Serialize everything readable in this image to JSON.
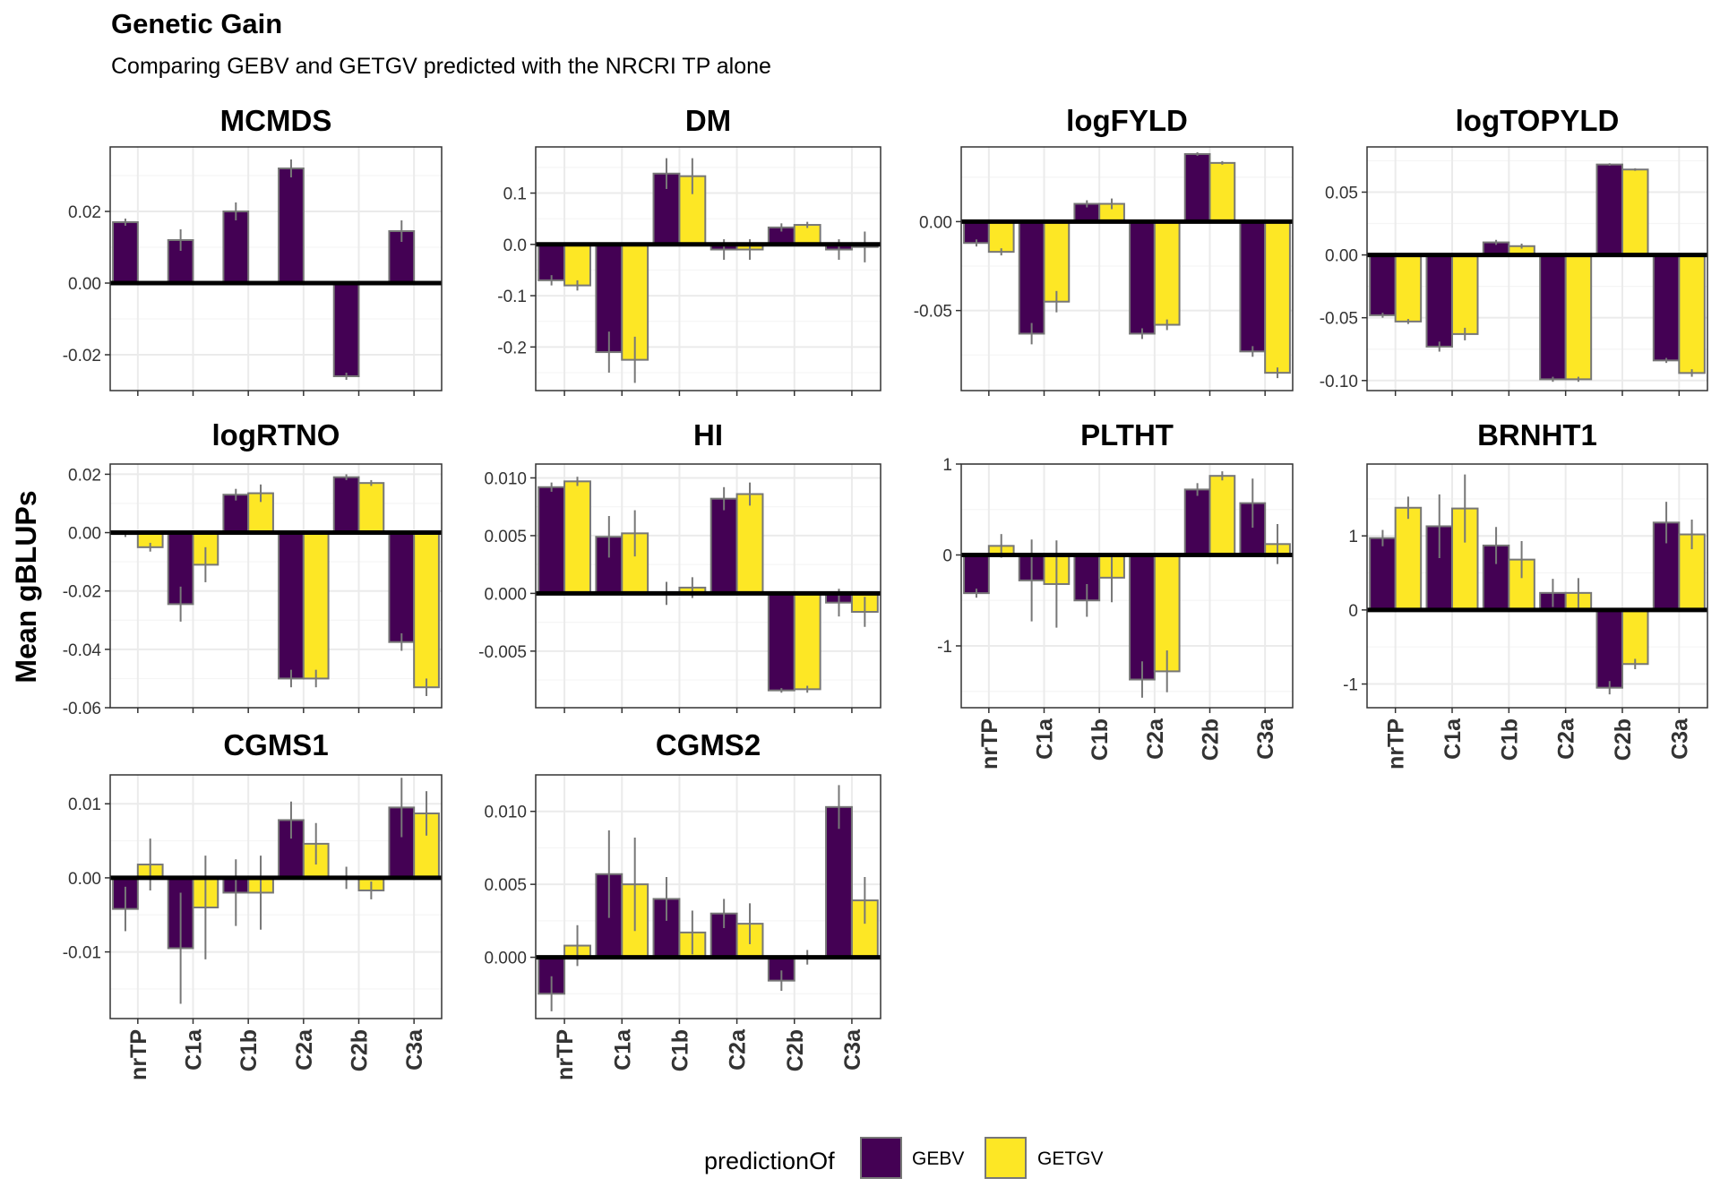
{
  "title": "Genetic Gain",
  "subtitle": "Comparing GEBV and GETGV  predicted with the NRCRI TP alone",
  "ylabel": "Mean gBLUPs",
  "legend": {
    "title": "predictionOf",
    "entries": [
      "GEBV",
      "GETGV"
    ]
  },
  "colors": {
    "GEBV": "#440154",
    "GETGV": "#FDE725",
    "bar_outline": "#777777",
    "error_bar": "#777777",
    "zero_line": "#000000",
    "grid_major": "#EBEBEB",
    "grid_minor": "#F5F5F5",
    "panel_border": "#333333"
  },
  "chart_data": {
    "type": "bar",
    "layout": "facet_wrap",
    "ncol": 4,
    "categories": [
      "nrTP",
      "C1a",
      "C1b",
      "C2a",
      "C2b",
      "C3a"
    ],
    "series_names": [
      "GEBV",
      "GETGV"
    ],
    "grid": true,
    "legend_position": "bottom",
    "panels": [
      {
        "name": "MCMDS",
        "ylim": [
          -0.03,
          0.038
        ],
        "yticks": [
          -0.02,
          0.0,
          0.02
        ],
        "ytick_labels": [
          "-0.02",
          "0.00",
          "0.02"
        ],
        "GEBV": [
          0.017,
          0.012,
          0.02,
          0.032,
          -0.026,
          0.0145
        ],
        "GEBV_err": [
          0.001,
          0.003,
          0.0025,
          0.0025,
          0.001,
          0.003
        ],
        "GETGV": [
          null,
          null,
          null,
          null,
          null,
          null
        ],
        "GETGV_err": [
          null,
          null,
          null,
          null,
          null,
          null
        ]
      },
      {
        "name": "DM",
        "ylim": [
          -0.285,
          0.19
        ],
        "yticks": [
          -0.2,
          -0.1,
          0.0,
          0.1
        ],
        "ytick_labels": [
          "-0.2",
          "-0.1",
          "0.0",
          "0.1"
        ],
        "GEBV": [
          -0.07,
          -0.21,
          0.138,
          -0.01,
          0.033,
          -0.01
        ],
        "GEBV_err": [
          0.01,
          0.04,
          0.03,
          0.02,
          0.008,
          0.02
        ],
        "GETGV": [
          -0.08,
          -0.225,
          0.133,
          -0.01,
          0.038,
          -0.005
        ],
        "GETGV_err": [
          0.01,
          0.045,
          0.035,
          0.02,
          0.006,
          0.03
        ]
      },
      {
        "name": "logFYLD",
        "ylim": [
          -0.095,
          0.042
        ],
        "yticks": [
          -0.05,
          0.0
        ],
        "ytick_labels": [
          "-0.05",
          "0.00"
        ],
        "GEBV": [
          -0.012,
          -0.063,
          0.01,
          -0.063,
          0.038,
          -0.073
        ],
        "GEBV_err": [
          0.002,
          0.006,
          0.002,
          0.003,
          0.001,
          0.003
        ],
        "GETGV": [
          -0.017,
          -0.045,
          0.01,
          -0.058,
          0.033,
          -0.085
        ],
        "GETGV_err": [
          0.002,
          0.006,
          0.003,
          0.003,
          0.001,
          0.003
        ]
      },
      {
        "name": "logTOPYLD",
        "ylim": [
          -0.108,
          0.086
        ],
        "yticks": [
          -0.1,
          -0.05,
          0.0,
          0.05
        ],
        "ytick_labels": [
          "-0.10",
          "-0.05",
          "0.00",
          "0.05"
        ],
        "GEBV": [
          -0.048,
          -0.073,
          0.01,
          -0.099,
          0.072,
          -0.084
        ],
        "GEBV_err": [
          0.002,
          0.004,
          0.002,
          0.002,
          0.001,
          0.002
        ],
        "GETGV": [
          -0.053,
          -0.063,
          0.007,
          -0.099,
          0.068,
          -0.094
        ],
        "GETGV_err": [
          0.002,
          0.005,
          0.002,
          0.002,
          0.001,
          0.003
        ]
      },
      {
        "name": "logRTNO",
        "ylim": [
          -0.06,
          0.0235
        ],
        "yticks": [
          -0.06,
          -0.04,
          -0.02,
          0.0,
          0.02
        ],
        "ytick_labels": [
          "-0.06",
          "-0.04",
          "-0.02",
          "0.00",
          "0.02"
        ],
        "GEBV": [
          -0.0005,
          -0.0245,
          0.013,
          -0.05,
          0.019,
          -0.0375
        ],
        "GEBV_err": [
          0.001,
          0.006,
          0.002,
          0.003,
          0.001,
          0.003
        ],
        "GETGV": [
          -0.005,
          -0.011,
          0.0135,
          -0.05,
          0.017,
          -0.053
        ],
        "GETGV_err": [
          0.0015,
          0.006,
          0.003,
          0.003,
          0.001,
          0.003
        ]
      },
      {
        "name": "HI",
        "ylim": [
          -0.0099,
          0.0112
        ],
        "yticks": [
          -0.005,
          0.0,
          0.005,
          0.01
        ],
        "ytick_labels": [
          "-0.005",
          "0.000",
          "0.005",
          "0.010"
        ],
        "GEBV": [
          0.0092,
          0.0049,
          0.0,
          0.0082,
          -0.0084,
          -0.0008
        ],
        "GEBV_err": [
          0.0004,
          0.0018,
          0.001,
          0.001,
          0.0002,
          0.0012
        ],
        "GETGV": [
          0.0097,
          0.0052,
          0.0005,
          0.0086,
          -0.0083,
          -0.0016
        ],
        "GETGV_err": [
          0.0004,
          0.002,
          0.0009,
          0.001,
          0.0003,
          0.0013
        ]
      },
      {
        "name": "PLTHT",
        "ylim": [
          -1.68,
          1.0
        ],
        "yticks": [
          -1,
          0,
          1
        ],
        "ytick_labels": [
          "-1",
          "0",
          "1"
        ],
        "GEBV": [
          -0.42,
          -0.28,
          -0.5,
          -1.37,
          0.72,
          0.57
        ],
        "GEBV_err": [
          0.05,
          0.45,
          0.18,
          0.2,
          0.07,
          0.27
        ],
        "GETGV": [
          0.1,
          -0.32,
          -0.25,
          -1.28,
          0.87,
          0.12
        ],
        "GETGV_err": [
          0.13,
          0.48,
          0.27,
          0.23,
          0.05,
          0.22
        ]
      },
      {
        "name": "BRNHT1",
        "ylim": [
          -1.32,
          1.97
        ],
        "yticks": [
          -1,
          0,
          1
        ],
        "ytick_labels": [
          "-1",
          "0",
          "1"
        ],
        "GEBV": [
          0.97,
          1.13,
          0.87,
          0.23,
          -1.05,
          1.18
        ],
        "GEBV_err": [
          0.11,
          0.43,
          0.25,
          0.19,
          0.09,
          0.28
        ],
        "GETGV": [
          1.38,
          1.37,
          0.68,
          0.23,
          -0.73,
          1.02
        ],
        "GETGV_err": [
          0.15,
          0.46,
          0.25,
          0.2,
          0.07,
          0.2
        ]
      },
      {
        "name": "CGMS1",
        "ylim": [
          -0.019,
          0.0139
        ],
        "yticks": [
          -0.01,
          0.0,
          0.01
        ],
        "ytick_labels": [
          "-0.01",
          "0.00",
          "0.01"
        ],
        "GEBV": [
          -0.0042,
          -0.0095,
          -0.002,
          0.0078,
          0.0,
          0.0095
        ],
        "GEBV_err": [
          0.003,
          0.0075,
          0.0045,
          0.0025,
          0.0015,
          0.004
        ],
        "GETGV": [
          0.0018,
          -0.004,
          -0.002,
          0.0046,
          -0.0017,
          0.0087
        ],
        "GETGV_err": [
          0.0035,
          0.007,
          0.005,
          0.0028,
          0.0012,
          0.003
        ]
      },
      {
        "name": "CGMS2",
        "ylim": [
          -0.0042,
          0.0125
        ],
        "yticks": [
          0.0,
          0.005,
          0.01
        ],
        "ytick_labels": [
          "0.000",
          "0.005",
          "0.010"
        ],
        "GEBV": [
          -0.0025,
          0.0057,
          0.004,
          0.003,
          -0.0016,
          0.0103
        ],
        "GEBV_err": [
          0.0012,
          0.003,
          0.0015,
          0.001,
          0.0007,
          0.0015
        ],
        "GETGV": [
          0.0008,
          0.005,
          0.0017,
          0.0023,
          0.0,
          0.0039
        ],
        "GETGV_err": [
          0.0014,
          0.0032,
          0.0015,
          0.0014,
          0.0005,
          0.0016
        ]
      }
    ]
  }
}
